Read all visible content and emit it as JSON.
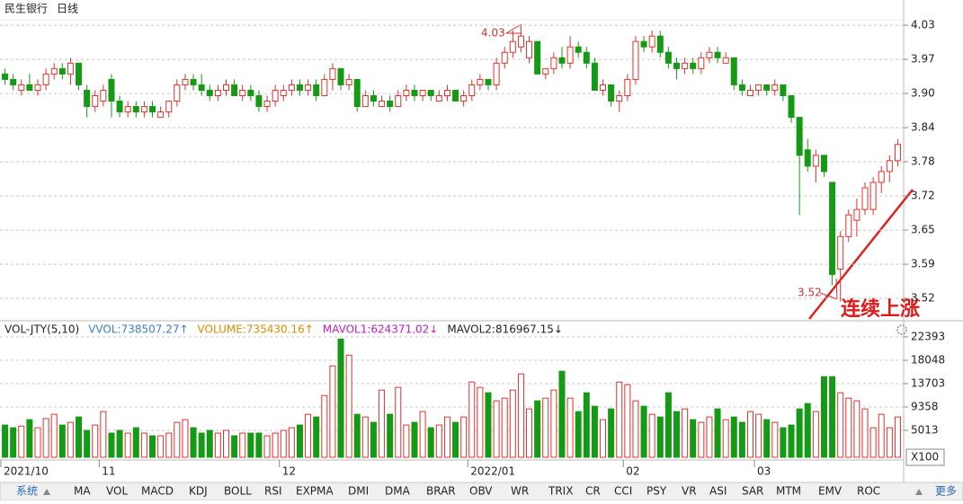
{
  "header": {
    "title": "民生银行",
    "period": "日线"
  },
  "volume_legend": [
    "VOL-JTY(5,10)",
    "VVOL:738507.27↑",
    "VOLUME:735430.16↑",
    "MAVOL1:624371.02↓",
    "MAVOL2:816967.15↓"
  ],
  "volume_unit": "X100",
  "tabs": [
    "系统",
    "MA",
    "VOL",
    "MACD",
    "KDJ",
    "BOLL",
    "RSI",
    "EXPMA",
    "DMI",
    "DMA",
    "BRAR",
    "OBV",
    "WR",
    "TRIX",
    "CR",
    "CCI",
    "PSY",
    "VR",
    "ASI",
    "SAR",
    "MTM",
    "EMV",
    "ROC",
    "更多"
  ],
  "chart_data": [
    {
      "type": "candlestick",
      "up_color": "#e0312d",
      "down_color": "#159a15",
      "grid": true,
      "annotations": [
        "4.03",
        "3.52",
        "连续上涨"
      ],
      "ylim": [
        3.488,
        4.06
      ],
      "yticks": [
        {
          "value": 4.03,
          "label": "4.03"
        },
        {
          "value": 3.967,
          "label": "3.97"
        },
        {
          "value": 3.904,
          "label": "3.90"
        },
        {
          "value": 3.841,
          "label": "3.84"
        },
        {
          "value": 3.778,
          "label": "3.78"
        },
        {
          "value": 3.715,
          "label": "3.72"
        },
        {
          "value": 3.652,
          "label": "3.65"
        },
        {
          "value": 3.589,
          "label": "3.59"
        },
        {
          "value": 3.526,
          "label": "3.52"
        }
      ],
      "categories": [
        "2021/10",
        null,
        null,
        null,
        null,
        null,
        null,
        null,
        null,
        null,
        null,
        null,
        "11",
        null,
        null,
        null,
        null,
        null,
        null,
        null,
        null,
        null,
        null,
        null,
        null,
        null,
        null,
        null,
        null,
        null,
        null,
        null,
        null,
        null,
        "12",
        null,
        null,
        null,
        null,
        null,
        null,
        null,
        null,
        null,
        null,
        null,
        null,
        null,
        null,
        null,
        null,
        null,
        null,
        null,
        null,
        null,
        null,
        "2022/01",
        null,
        null,
        null,
        null,
        null,
        null,
        null,
        null,
        null,
        null,
        null,
        null,
        null,
        null,
        null,
        null,
        null,
        null,
        "02",
        null,
        null,
        null,
        null,
        null,
        null,
        null,
        null,
        null,
        null,
        null,
        null,
        null,
        null,
        null,
        "03",
        null,
        null,
        null,
        null,
        null,
        null,
        null,
        null,
        null,
        null,
        null,
        null,
        null,
        null,
        null,
        null,
        null
      ],
      "open": [
        3.94,
        3.93,
        3.91,
        3.92,
        3.91,
        3.92,
        3.94,
        3.95,
        3.94,
        3.96,
        3.91,
        3.88,
        3.89,
        3.93,
        3.89,
        3.87,
        3.88,
        3.87,
        3.88,
        3.86,
        3.87,
        3.89,
        3.92,
        3.93,
        3.92,
        3.91,
        3.9,
        3.91,
        3.92,
        3.9,
        3.91,
        3.9,
        3.88,
        3.89,
        3.9,
        3.91,
        3.92,
        3.91,
        3.92,
        3.9,
        3.93,
        3.95,
        3.92,
        3.93,
        3.88,
        3.9,
        3.88,
        3.89,
        3.88,
        3.9,
        3.91,
        3.9,
        3.91,
        3.89,
        3.9,
        3.91,
        3.89,
        3.9,
        3.92,
        3.93,
        3.92,
        3.96,
        3.98,
        3.99,
        3.97,
        4.0,
        3.94,
        3.95,
        3.97,
        3.96,
        3.99,
        3.98,
        3.96,
        3.91,
        3.92,
        3.89,
        3.9,
        3.93,
        4.0,
        3.99,
        4.01,
        3.98,
        3.96,
        3.95,
        3.96,
        3.95,
        3.97,
        3.98,
        3.96,
        3.97,
        3.92,
        3.9,
        3.91,
        3.92,
        3.91,
        3.92,
        3.9,
        3.86,
        3.8,
        3.77,
        3.79,
        3.74,
        3.58,
        3.64,
        3.67,
        3.69,
        3.69,
        3.74,
        3.76,
        3.78
      ],
      "high": [
        3.95,
        3.94,
        3.93,
        3.94,
        3.93,
        3.95,
        3.96,
        3.96,
        3.97,
        3.96,
        3.92,
        3.91,
        3.92,
        3.94,
        3.9,
        3.89,
        3.89,
        3.89,
        3.89,
        3.88,
        3.89,
        3.93,
        3.94,
        3.94,
        3.94,
        3.92,
        3.92,
        3.93,
        3.93,
        3.92,
        3.92,
        3.91,
        3.9,
        3.92,
        3.92,
        3.93,
        3.93,
        3.93,
        3.93,
        3.94,
        3.96,
        3.95,
        3.94,
        3.93,
        3.91,
        3.91,
        3.9,
        3.9,
        3.91,
        3.92,
        3.92,
        3.91,
        3.91,
        3.91,
        3.92,
        3.91,
        3.91,
        3.93,
        3.94,
        3.93,
        3.97,
        3.99,
        4.02,
        4.03,
        4.01,
        4.0,
        3.95,
        3.98,
        3.99,
        4.01,
        4.0,
        3.99,
        3.97,
        3.93,
        3.92,
        3.91,
        3.94,
        4.01,
        4.01,
        4.02,
        4.02,
        3.99,
        3.97,
        3.97,
        3.97,
        3.98,
        3.99,
        3.99,
        3.98,
        3.97,
        3.93,
        3.92,
        3.92,
        3.92,
        3.93,
        3.92,
        3.9,
        3.86,
        3.82,
        3.8,
        3.79,
        3.74,
        3.65,
        3.69,
        3.71,
        3.74,
        3.75,
        3.77,
        3.79,
        3.82
      ],
      "low": [
        3.92,
        3.91,
        3.9,
        3.91,
        3.9,
        3.91,
        3.93,
        3.93,
        3.92,
        3.91,
        3.86,
        3.87,
        3.88,
        3.86,
        3.86,
        3.86,
        3.86,
        3.86,
        3.86,
        3.86,
        3.86,
        3.88,
        3.91,
        3.91,
        3.9,
        3.89,
        3.89,
        3.9,
        3.9,
        3.89,
        3.89,
        3.87,
        3.87,
        3.88,
        3.89,
        3.9,
        3.9,
        3.9,
        3.89,
        3.9,
        3.91,
        3.91,
        3.91,
        3.87,
        3.88,
        3.88,
        3.88,
        3.87,
        3.88,
        3.89,
        3.89,
        3.89,
        3.89,
        3.89,
        3.89,
        3.89,
        3.88,
        3.89,
        3.91,
        3.91,
        3.91,
        3.95,
        3.97,
        3.98,
        3.96,
        3.94,
        3.93,
        3.94,
        3.95,
        3.95,
        3.97,
        3.95,
        3.91,
        3.9,
        3.88,
        3.87,
        3.89,
        3.92,
        3.98,
        3.98,
        3.97,
        3.95,
        3.93,
        3.94,
        3.94,
        3.94,
        3.96,
        3.96,
        3.96,
        3.91,
        3.9,
        3.9,
        3.9,
        3.9,
        3.9,
        3.89,
        3.85,
        3.68,
        3.76,
        3.74,
        3.75,
        3.55,
        3.52,
        3.63,
        3.64,
        3.68,
        3.68,
        3.72,
        3.74,
        3.77
      ],
      "close": [
        3.93,
        3.92,
        3.92,
        3.91,
        3.92,
        3.94,
        3.95,
        3.94,
        3.96,
        3.92,
        3.88,
        3.9,
        3.91,
        3.89,
        3.87,
        3.88,
        3.87,
        3.88,
        3.87,
        3.87,
        3.89,
        3.92,
        3.93,
        3.92,
        3.91,
        3.9,
        3.91,
        3.92,
        3.9,
        3.91,
        3.9,
        3.88,
        3.89,
        3.91,
        3.91,
        3.92,
        3.91,
        3.92,
        3.9,
        3.93,
        3.95,
        3.92,
        3.93,
        3.88,
        3.9,
        3.89,
        3.89,
        3.88,
        3.9,
        3.91,
        3.9,
        3.91,
        3.9,
        3.9,
        3.91,
        3.89,
        3.9,
        3.92,
        3.93,
        3.92,
        3.96,
        3.98,
        4.0,
        4.01,
        4.0,
        3.94,
        3.95,
        3.97,
        3.96,
        3.99,
        3.98,
        3.96,
        3.91,
        3.92,
        3.89,
        3.9,
        3.93,
        4.0,
        3.99,
        4.01,
        3.98,
        3.96,
        3.95,
        3.96,
        3.95,
        3.97,
        3.98,
        3.97,
        3.97,
        3.92,
        3.91,
        3.91,
        3.92,
        3.91,
        3.92,
        3.9,
        3.86,
        3.79,
        3.77,
        3.79,
        3.76,
        3.57,
        3.64,
        3.68,
        3.69,
        3.73,
        3.74,
        3.76,
        3.78,
        3.81
      ]
    },
    {
      "type": "bar",
      "ylim": [
        0,
        24230
      ],
      "yticks": [
        22393,
        18048,
        13703,
        9358,
        5013
      ],
      "values": [
        6000,
        5500,
        5800,
        7000,
        5500,
        7200,
        8000,
        6000,
        6500,
        7500,
        5000,
        6000,
        8500,
        4500,
        5000,
        4500,
        5500,
        4500,
        4000,
        4000,
        4500,
        6500,
        7000,
        5500,
        4500,
        5000,
        4500,
        5000,
        4000,
        4500,
        4500,
        4500,
        4000,
        4500,
        5000,
        5500,
        6000,
        8000,
        7500,
        11500,
        17000,
        22000,
        19000,
        8000,
        7500,
        6500,
        12500,
        8000,
        13000,
        6000,
        6500,
        8500,
        5500,
        6000,
        7500,
        6500,
        7500,
        14000,
        13000,
        12000,
        10500,
        11000,
        12500,
        15500,
        9000,
        10500,
        11000,
        12500,
        16000,
        11000,
        8500,
        12000,
        9500,
        7000,
        9000,
        14000,
        13500,
        10500,
        9500,
        8000,
        7500,
        12000,
        8500,
        9000,
        7000,
        6500,
        7500,
        9000,
        7000,
        7500,
        6500,
        8500,
        8000,
        7000,
        6500,
        5500,
        6000,
        9000,
        10000,
        8500,
        15000,
        15000,
        12000,
        11000,
        10500,
        9000,
        5500,
        8000,
        5500,
        7500
      ]
    }
  ]
}
